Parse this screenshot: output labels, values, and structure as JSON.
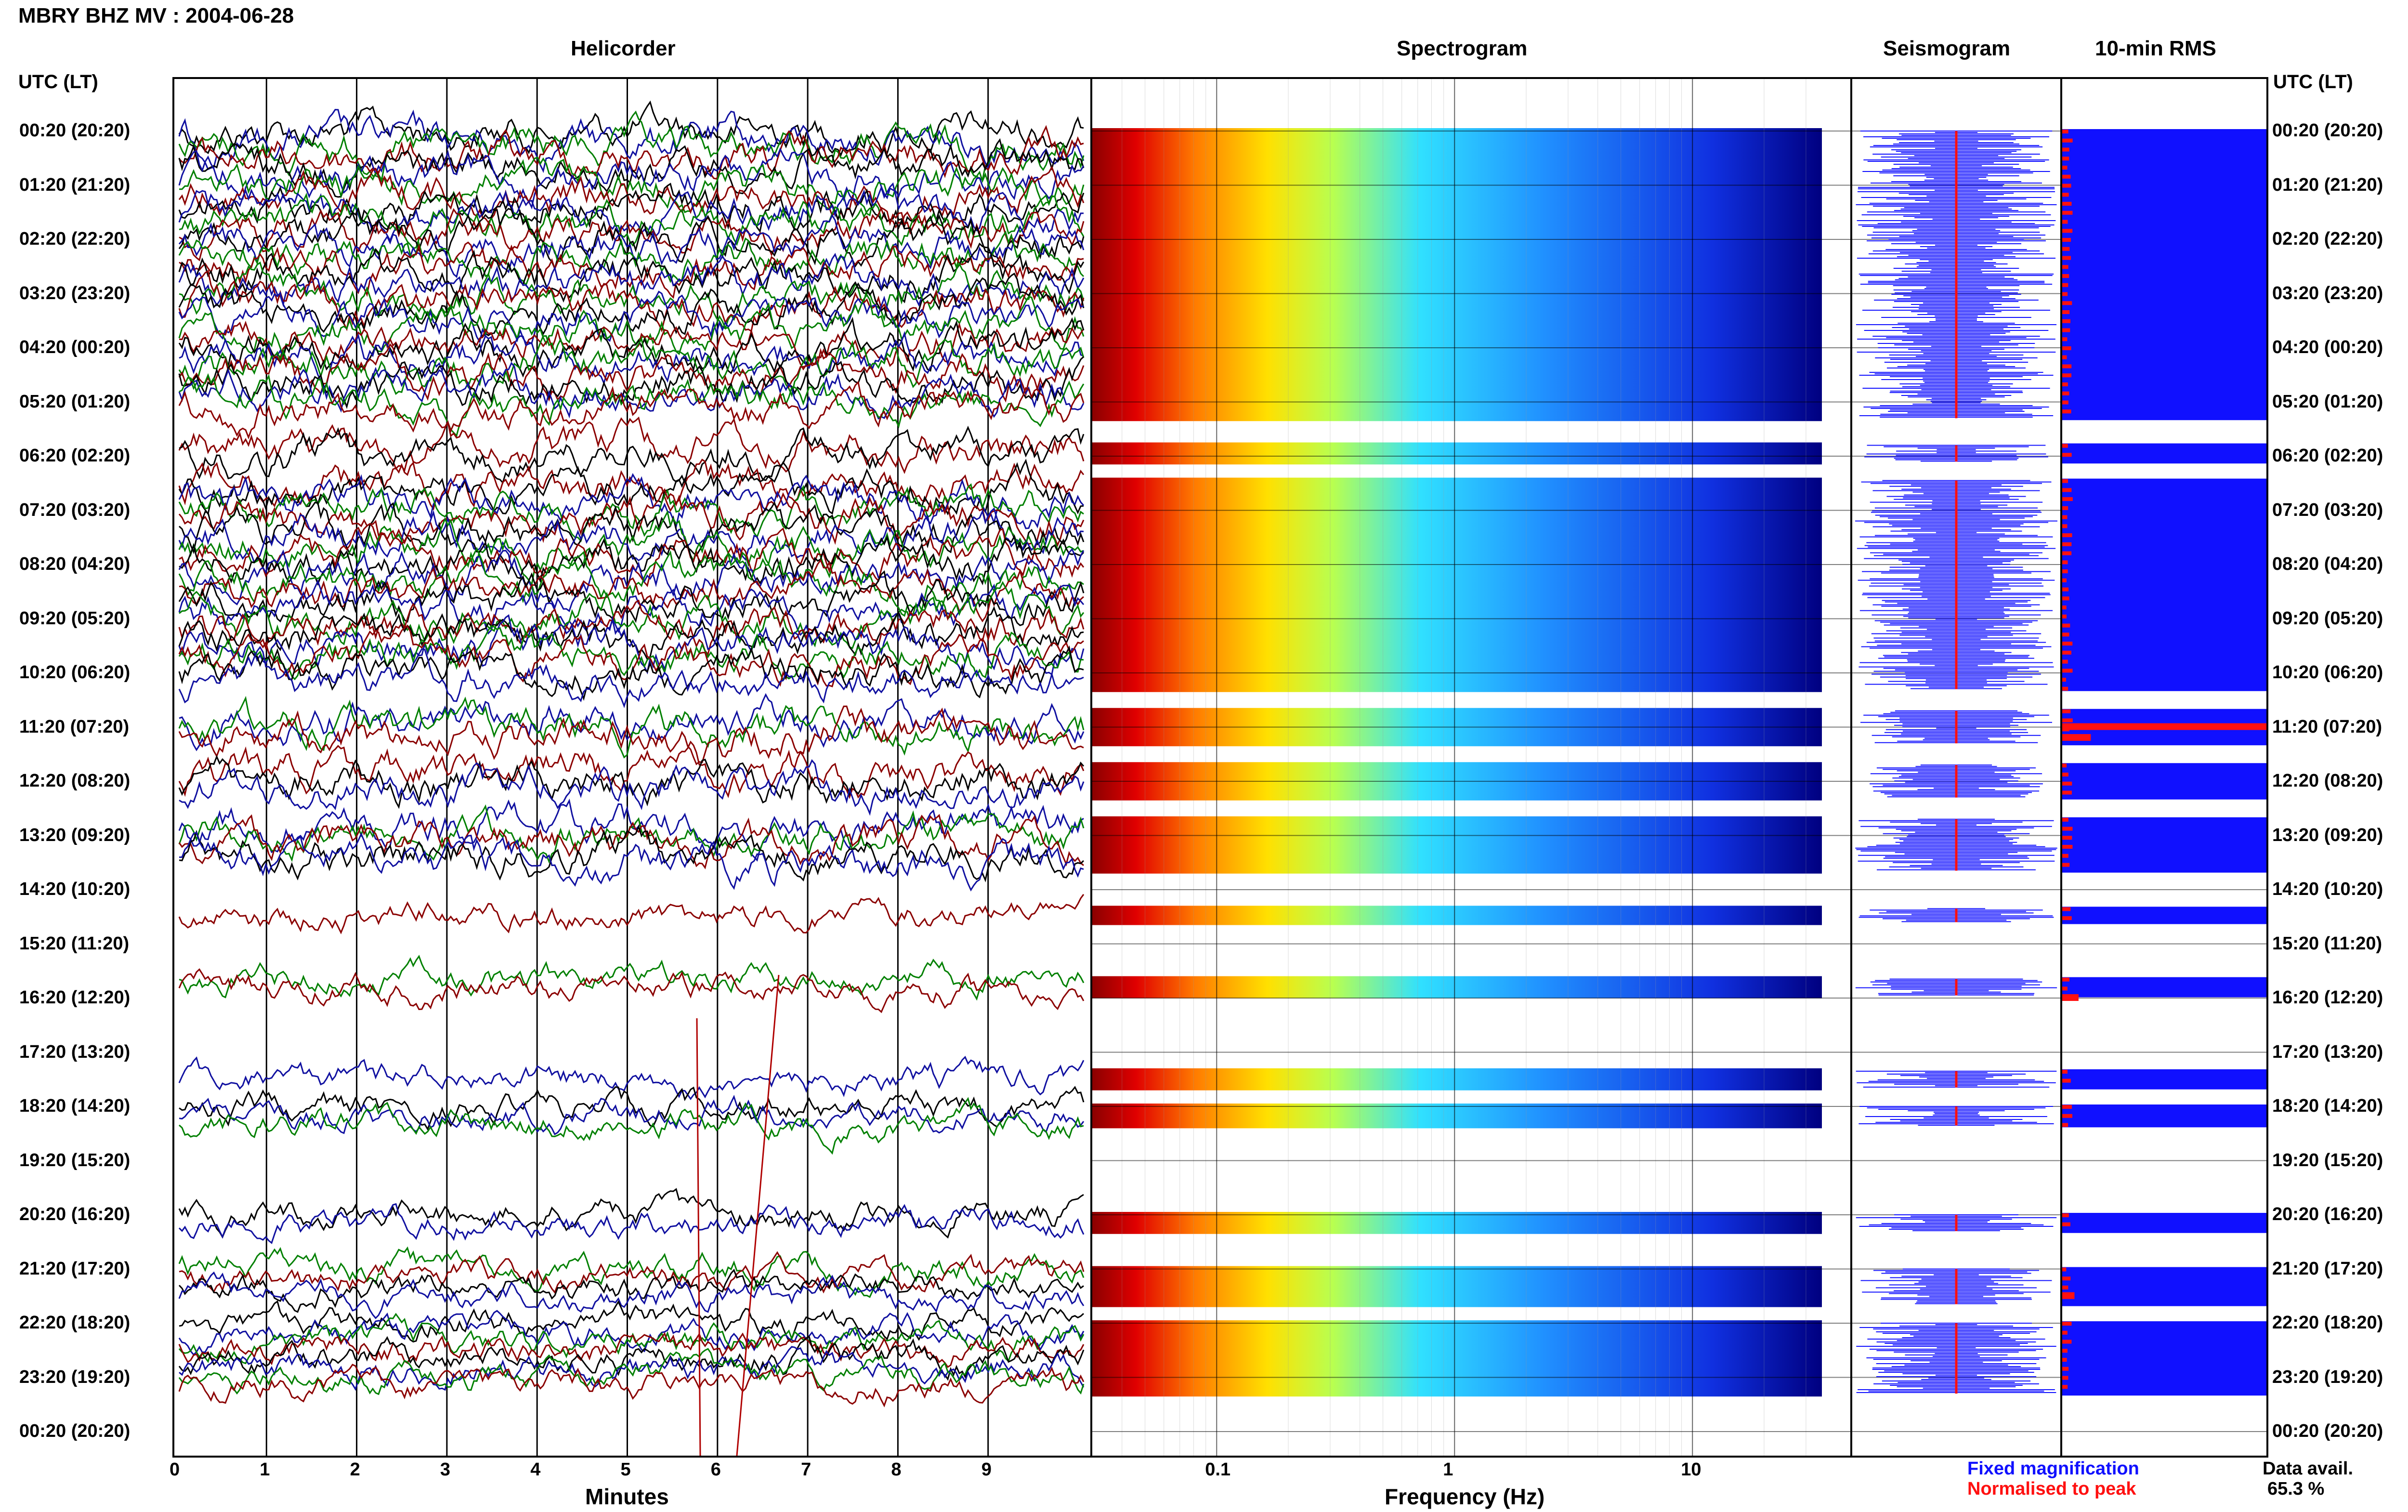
{
  "header": {
    "station_title": "MBRY BHZ MV : 2004-06-28"
  },
  "panels": {
    "helicorder": "Helicorder",
    "spectrogram": "Spectrogram",
    "seismogram": "Seismogram",
    "rms": "10-min RMS"
  },
  "axes": {
    "time_header_left": "UTC (LT)",
    "time_header_right": "UTC (LT)",
    "helicorder_xlabel": "Minutes",
    "spectrogram_xlabel": "Frequency (Hz)",
    "minute_ticks": [
      "0",
      "1",
      "2",
      "3",
      "4",
      "5",
      "6",
      "7",
      "8",
      "9"
    ],
    "frequency_ticks": [
      "0.1",
      "1",
      "10"
    ]
  },
  "time_labels": [
    "00:20 (20:20)",
    "01:20 (21:20)",
    "02:20 (22:20)",
    "03:20 (23:20)",
    "04:20 (00:20)",
    "05:20 (01:20)",
    "06:20 (02:20)",
    "07:20 (03:20)",
    "08:20 (04:20)",
    "09:20 (05:20)",
    "10:20 (06:20)",
    "11:20 (07:20)",
    "12:20 (08:20)",
    "13:20 (09:20)",
    "14:20 (10:20)",
    "15:20 (11:20)",
    "16:20 (12:20)",
    "17:20 (13:20)",
    "18:20 (14:20)",
    "19:20 (15:20)",
    "20:20 (16:20)",
    "21:20 (17:20)",
    "22:20 (18:20)",
    "23:20 (19:20)",
    "00:20 (20:20)"
  ],
  "legend": {
    "fixed": "Fixed magnification",
    "normalised": "Normalised to peak",
    "fixed_color": "#1010ff",
    "normalised_color": "#ff1010"
  },
  "data_availability": {
    "label": "Data avail.",
    "value": "65.3 %"
  },
  "chart_data": {
    "type": "heatmap",
    "title": "MBRY BHZ MV : 2004-06-28",
    "xlabel_helicorder": "Minutes",
    "xlabel_spectrogram": "Frequency (Hz)",
    "helicorder_xlim": [
      0,
      10
    ],
    "spectrogram_xlim_hz": [
      0.03,
      35
    ],
    "spectrogram_xscale": "log",
    "row_interval_minutes": 10,
    "hours_utc": 24,
    "trace_colors": [
      "#000000",
      "#1010a0",
      "#008000",
      "#8b0000"
    ],
    "data_segments_hours_from_0020": [
      [
        0.0,
        5.3
      ],
      [
        5.8,
        6.1
      ],
      [
        6.45,
        10.3
      ],
      [
        10.7,
        11.3
      ],
      [
        11.7,
        12.3
      ],
      [
        12.7,
        13.65
      ],
      [
        14.35,
        14.6
      ],
      [
        15.65,
        15.95
      ],
      [
        17.35,
        17.65
      ],
      [
        18.0,
        18.35
      ],
      [
        20.0,
        20.3
      ],
      [
        21.0,
        21.65
      ],
      [
        22.0,
        23.3
      ]
    ],
    "rms_red_marks": [
      {
        "hour": 11.0,
        "level": 1.0
      },
      {
        "hour": 11.2,
        "level": 0.14
      },
      {
        "hour": 16.0,
        "level": 0.08
      },
      {
        "hour": 21.5,
        "level": 0.06
      }
    ],
    "data_availability_percent": 65.3
  }
}
